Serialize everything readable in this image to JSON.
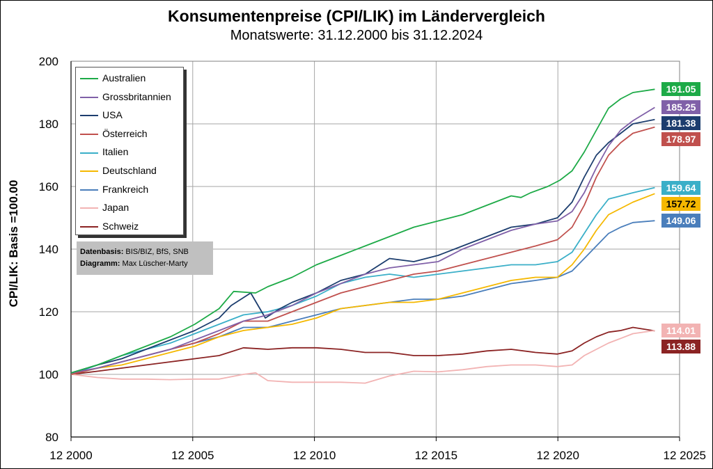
{
  "header": {
    "title": "Konsumentenpreise  (CPI/LIK) im Ländervergleich",
    "subtitle": "Monatswerte: 31.12.2000 bis 31.12.2024"
  },
  "source": {
    "line1_label": "Datenbasis:",
    "line1_value": " BIS/BIZ, BfS, SNB",
    "line2_label": "Diagramm:",
    "line2_value": " Max Lüscher-Marty"
  },
  "chart_data": {
    "type": "line",
    "ylabel": "CPI/LIK: Basis =100.00",
    "xlim": [
      2000.917,
      2025.917
    ],
    "ylim": [
      80,
      200
    ],
    "x_ticks": [
      {
        "value": 2000.917,
        "label": "12 2000"
      },
      {
        "value": 2005.917,
        "label": "12 2005"
      },
      {
        "value": 2010.917,
        "label": "12 2010"
      },
      {
        "value": 2015.917,
        "label": "12 2015"
      },
      {
        "value": 2020.917,
        "label": "12 2020"
      },
      {
        "value": 2025.917,
        "label": "12 2025"
      }
    ],
    "y_ticks": [
      80,
      100,
      120,
      140,
      160,
      180,
      200
    ],
    "grid": true,
    "legend_position": "top-left",
    "series": [
      {
        "name": "Australien",
        "color": "#1daa47",
        "end_label": "191.05",
        "points": [
          [
            2000.92,
            100.5
          ],
          [
            2002,
            103
          ],
          [
            2003,
            106
          ],
          [
            2004,
            109
          ],
          [
            2005,
            112
          ],
          [
            2006,
            116
          ],
          [
            2007,
            121
          ],
          [
            2007.6,
            126.5
          ],
          [
            2008.5,
            126
          ],
          [
            2009,
            128
          ],
          [
            2010,
            131
          ],
          [
            2011,
            135
          ],
          [
            2012,
            138
          ],
          [
            2013,
            141
          ],
          [
            2014,
            144
          ],
          [
            2015,
            147
          ],
          [
            2016,
            149
          ],
          [
            2017,
            151
          ],
          [
            2018,
            154
          ],
          [
            2019,
            157
          ],
          [
            2019.4,
            156.5
          ],
          [
            2019.8,
            158
          ],
          [
            2020.5,
            160
          ],
          [
            2021,
            162
          ],
          [
            2021.5,
            165
          ],
          [
            2022,
            171
          ],
          [
            2022.5,
            178
          ],
          [
            2023,
            185
          ],
          [
            2023.5,
            188
          ],
          [
            2024,
            190
          ],
          [
            2024.9,
            191.05
          ]
        ]
      },
      {
        "name": "Grossbritannien",
        "color": "#8060a8",
        "end_label": "185.25",
        "points": [
          [
            2000.92,
            100.5
          ],
          [
            2002,
            102
          ],
          [
            2003,
            104
          ],
          [
            2004,
            106
          ],
          [
            2005,
            108
          ],
          [
            2006,
            111
          ],
          [
            2007,
            114
          ],
          [
            2008,
            117
          ],
          [
            2009,
            119
          ],
          [
            2010,
            122
          ],
          [
            2011,
            126
          ],
          [
            2012,
            129
          ],
          [
            2013,
            132
          ],
          [
            2014,
            134
          ],
          [
            2015,
            135
          ],
          [
            2016,
            136
          ],
          [
            2017,
            140
          ],
          [
            2018,
            143
          ],
          [
            2019,
            146
          ],
          [
            2020,
            148
          ],
          [
            2020.9,
            149
          ],
          [
            2021.5,
            152
          ],
          [
            2022,
            158
          ],
          [
            2022.5,
            166
          ],
          [
            2023,
            173
          ],
          [
            2023.5,
            178
          ],
          [
            2024,
            181
          ],
          [
            2024.9,
            185.25
          ]
        ]
      },
      {
        "name": "USA",
        "color": "#1c3d6e",
        "end_label": "181.38",
        "points": [
          [
            2000.92,
            100.5
          ],
          [
            2002,
            103
          ],
          [
            2003,
            105
          ],
          [
            2004,
            108
          ],
          [
            2005,
            111
          ],
          [
            2006,
            114
          ],
          [
            2007,
            118
          ],
          [
            2007.5,
            122
          ],
          [
            2008.3,
            126
          ],
          [
            2008.9,
            118
          ],
          [
            2009.5,
            121
          ],
          [
            2010,
            123
          ],
          [
            2011,
            126
          ],
          [
            2012,
            130
          ],
          [
            2013,
            132
          ],
          [
            2014,
            137
          ],
          [
            2015,
            136
          ],
          [
            2016,
            138
          ],
          [
            2017,
            141
          ],
          [
            2018,
            144
          ],
          [
            2019,
            147
          ],
          [
            2020,
            148
          ],
          [
            2020.9,
            150
          ],
          [
            2021.5,
            155
          ],
          [
            2022,
            163
          ],
          [
            2022.5,
            170
          ],
          [
            2023,
            174
          ],
          [
            2023.5,
            177
          ],
          [
            2024,
            180
          ],
          [
            2024.9,
            181.38
          ]
        ]
      },
      {
        "name": "Österreich",
        "color": "#c0504d",
        "end_label": "178.97",
        "points": [
          [
            2000.92,
            100
          ],
          [
            2002,
            102
          ],
          [
            2003,
            104
          ],
          [
            2004,
            106
          ],
          [
            2005,
            108
          ],
          [
            2006,
            110
          ],
          [
            2007,
            113
          ],
          [
            2008,
            117
          ],
          [
            2009,
            117
          ],
          [
            2010,
            120
          ],
          [
            2011,
            123
          ],
          [
            2012,
            126
          ],
          [
            2013,
            128
          ],
          [
            2014,
            130
          ],
          [
            2015,
            132
          ],
          [
            2016,
            133
          ],
          [
            2017,
            135
          ],
          [
            2018,
            137
          ],
          [
            2019,
            139
          ],
          [
            2020,
            141
          ],
          [
            2020.9,
            143
          ],
          [
            2021.5,
            147
          ],
          [
            2022,
            154
          ],
          [
            2022.5,
            163
          ],
          [
            2023,
            170
          ],
          [
            2023.5,
            174
          ],
          [
            2024,
            177
          ],
          [
            2024.9,
            178.97
          ]
        ]
      },
      {
        "name": "Italien",
        "color": "#3aafc8",
        "end_label": "159.64",
        "points": [
          [
            2000.92,
            100
          ],
          [
            2002,
            103
          ],
          [
            2003,
            106
          ],
          [
            2004,
            108
          ],
          [
            2005,
            110
          ],
          [
            2006,
            113
          ],
          [
            2007,
            116
          ],
          [
            2008,
            119
          ],
          [
            2009,
            120
          ],
          [
            2010,
            122
          ],
          [
            2011,
            125
          ],
          [
            2012,
            129
          ],
          [
            2013,
            131
          ],
          [
            2014,
            132
          ],
          [
            2015,
            131
          ],
          [
            2016,
            132
          ],
          [
            2017,
            133
          ],
          [
            2018,
            134
          ],
          [
            2019,
            135
          ],
          [
            2020,
            135
          ],
          [
            2020.9,
            136
          ],
          [
            2021.5,
            139
          ],
          [
            2022,
            145
          ],
          [
            2022.5,
            151
          ],
          [
            2023,
            156
          ],
          [
            2023.5,
            157
          ],
          [
            2024,
            158
          ],
          [
            2024.9,
            159.64
          ]
        ]
      },
      {
        "name": "Deutschland",
        "color": "#f5b800",
        "end_label": "157.72",
        "points": [
          [
            2000.92,
            100
          ],
          [
            2002,
            102
          ],
          [
            2003,
            103
          ],
          [
            2004,
            105
          ],
          [
            2005,
            107
          ],
          [
            2006,
            109
          ],
          [
            2007,
            112
          ],
          [
            2008,
            114
          ],
          [
            2009,
            115
          ],
          [
            2010,
            116
          ],
          [
            2011,
            118
          ],
          [
            2012,
            121
          ],
          [
            2013,
            122
          ],
          [
            2014,
            123
          ],
          [
            2015,
            123
          ],
          [
            2016,
            124
          ],
          [
            2017,
            126
          ],
          [
            2018,
            128
          ],
          [
            2019,
            130
          ],
          [
            2020,
            131
          ],
          [
            2020.9,
            131
          ],
          [
            2021.5,
            135
          ],
          [
            2022,
            140
          ],
          [
            2022.5,
            146
          ],
          [
            2023,
            151
          ],
          [
            2023.5,
            153
          ],
          [
            2024,
            155
          ],
          [
            2024.9,
            157.72
          ]
        ]
      },
      {
        "name": "Frankreich",
        "color": "#4a7ebb",
        "end_label": "149.06",
        "points": [
          [
            2000.92,
            100
          ],
          [
            2002,
            102
          ],
          [
            2003,
            104
          ],
          [
            2004,
            106
          ],
          [
            2005,
            108
          ],
          [
            2006,
            110
          ],
          [
            2007,
            112
          ],
          [
            2008,
            115
          ],
          [
            2009,
            115
          ],
          [
            2010,
            117
          ],
          [
            2011,
            119
          ],
          [
            2012,
            121
          ],
          [
            2013,
            122
          ],
          [
            2014,
            123
          ],
          [
            2015,
            124
          ],
          [
            2016,
            124
          ],
          [
            2017,
            125
          ],
          [
            2018,
            127
          ],
          [
            2019,
            129
          ],
          [
            2020,
            130
          ],
          [
            2020.9,
            131
          ],
          [
            2021.5,
            133
          ],
          [
            2022,
            137
          ],
          [
            2022.5,
            141
          ],
          [
            2023,
            145
          ],
          [
            2023.5,
            147
          ],
          [
            2024,
            148.5
          ],
          [
            2024.9,
            149.06
          ]
        ]
      },
      {
        "name": "Japan",
        "color": "#f2b3b3",
        "end_label": "114.01",
        "points": [
          [
            2000.92,
            100
          ],
          [
            2002,
            99
          ],
          [
            2003,
            98.5
          ],
          [
            2004,
            98.5
          ],
          [
            2005,
            98.3
          ],
          [
            2006,
            98.5
          ],
          [
            2007,
            98.5
          ],
          [
            2008,
            100
          ],
          [
            2008.5,
            100.5
          ],
          [
            2009,
            98
          ],
          [
            2010,
            97.5
          ],
          [
            2011,
            97.5
          ],
          [
            2012,
            97.5
          ],
          [
            2013,
            97.2
          ],
          [
            2014,
            99.5
          ],
          [
            2015,
            101
          ],
          [
            2016,
            100.8
          ],
          [
            2017,
            101.5
          ],
          [
            2018,
            102.5
          ],
          [
            2019,
            103
          ],
          [
            2020,
            103
          ],
          [
            2020.9,
            102.5
          ],
          [
            2021.5,
            103
          ],
          [
            2022,
            106
          ],
          [
            2022.5,
            108
          ],
          [
            2023,
            110
          ],
          [
            2023.5,
            111.5
          ],
          [
            2024,
            113
          ],
          [
            2024.9,
            114.01
          ]
        ]
      },
      {
        "name": "Schweiz",
        "color": "#8b2323",
        "end_label": "113.88",
        "points": [
          [
            2000.92,
            100
          ],
          [
            2002,
            101
          ],
          [
            2003,
            102
          ],
          [
            2004,
            103
          ],
          [
            2005,
            104
          ],
          [
            2006,
            105
          ],
          [
            2007,
            106
          ],
          [
            2008,
            108.5
          ],
          [
            2009,
            108
          ],
          [
            2010,
            108.5
          ],
          [
            2011,
            108.5
          ],
          [
            2012,
            108
          ],
          [
            2013,
            107
          ],
          [
            2014,
            107
          ],
          [
            2015,
            106
          ],
          [
            2016,
            106
          ],
          [
            2017,
            106.5
          ],
          [
            2018,
            107.5
          ],
          [
            2019,
            108
          ],
          [
            2020,
            107
          ],
          [
            2020.9,
            106.5
          ],
          [
            2021.5,
            107.5
          ],
          [
            2022,
            110
          ],
          [
            2022.5,
            112
          ],
          [
            2023,
            113.5
          ],
          [
            2023.5,
            114
          ],
          [
            2024,
            115
          ],
          [
            2024.9,
            113.88
          ]
        ]
      }
    ]
  }
}
